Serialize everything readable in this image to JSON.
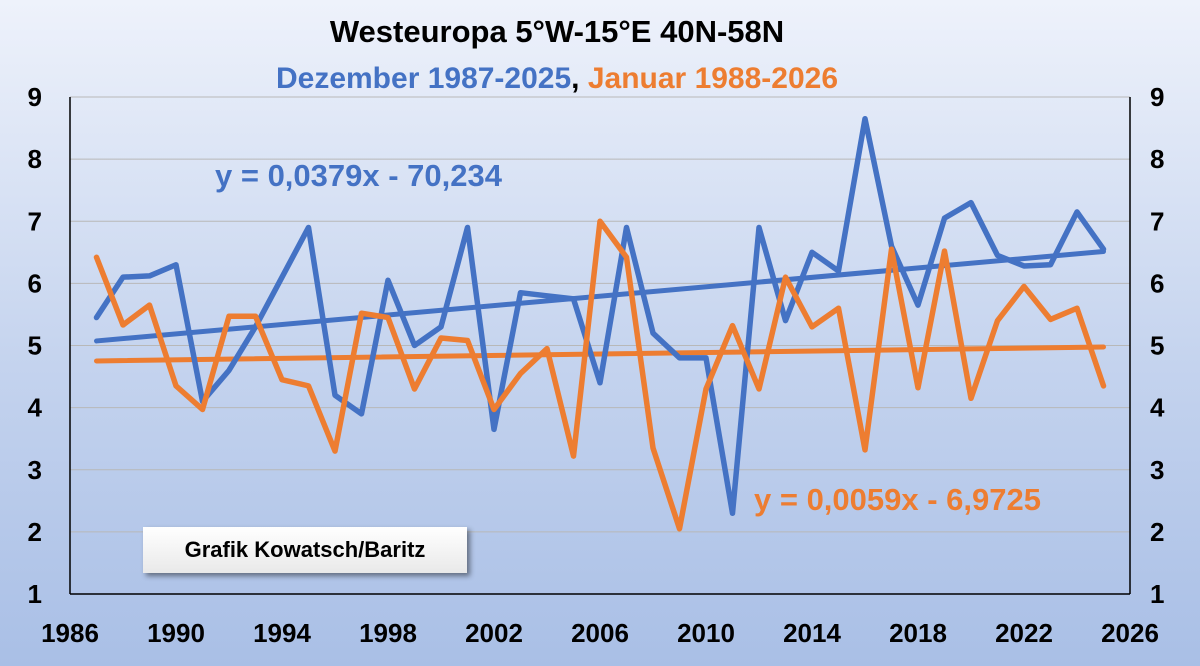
{
  "chart_data": {
    "type": "line",
    "title": "Westeuropa 5°W-15°E 40N-58N",
    "subtitle_parts": [
      {
        "text": "Dezember 1987-2025",
        "color": "#4472c4"
      },
      {
        "text": ",",
        "color": "#000000"
      },
      {
        "text": " Januar 1988-2026",
        "color": "#ed7d31"
      }
    ],
    "xlim": [
      1986,
      2026
    ],
    "ylim": [
      1,
      9
    ],
    "x_ticks": [
      "1986",
      "1990",
      "1994",
      "1998",
      "2002",
      "2006",
      "2010",
      "2014",
      "2018",
      "2022",
      "2026"
    ],
    "y_ticks": [
      "1",
      "2",
      "3",
      "4",
      "5",
      "6",
      "7",
      "8",
      "9"
    ],
    "grid": "horizontal",
    "series": [
      {
        "color": "#4472c4",
        "x": [
          1987,
          1988,
          1989,
          1990,
          1991,
          1992,
          1993,
          1994,
          1995,
          1996,
          1997,
          1998,
          1999,
          2000,
          2001,
          2002,
          2003,
          2004,
          2005,
          2006,
          2007,
          2008,
          2009,
          2010,
          2011,
          2012,
          2013,
          2014,
          2015,
          2016,
          2017,
          2018,
          2019,
          2020,
          2021,
          2022,
          2023,
          2024,
          2025
        ],
        "values": [
          5.45,
          6.1,
          6.12,
          6.3,
          4.1,
          4.6,
          5.3,
          6.1,
          6.9,
          4.2,
          3.9,
          6.05,
          5.0,
          5.3,
          6.9,
          3.65,
          5.85,
          5.8,
          5.75,
          4.4,
          6.9,
          5.2,
          4.8,
          4.8,
          2.3,
          6.9,
          5.4,
          6.5,
          6.2,
          8.65,
          6.6,
          5.65,
          7.05,
          7.3,
          6.45,
          6.28,
          6.3,
          7.15,
          6.55
        ],
        "trend": {
          "slope": 0.0379,
          "intercept": -70.234,
          "label": "y = 0,0379x - 70,234"
        }
      },
      {
        "color": "#ed7d31",
        "x": [
          1987,
          1988,
          1989,
          1990,
          1991,
          1992,
          1993,
          1994,
          1995,
          1996,
          1997,
          1998,
          1999,
          2000,
          2001,
          2002,
          2003,
          2004,
          2005,
          2006,
          2007,
          2008,
          2009,
          2010,
          2011,
          2012,
          2013,
          2014,
          2015,
          2016,
          2017,
          2018,
          2019,
          2020,
          2021,
          2022,
          2023,
          2024,
          2025
        ],
        "values": [
          6.42,
          5.33,
          5.65,
          4.35,
          3.97,
          5.47,
          5.47,
          4.45,
          4.35,
          3.3,
          5.52,
          5.45,
          4.3,
          5.12,
          5.08,
          3.97,
          4.55,
          4.95,
          3.22,
          7.0,
          6.42,
          3.35,
          2.05,
          4.3,
          5.32,
          4.3,
          6.1,
          5.3,
          5.6,
          3.32,
          6.55,
          4.32,
          6.52,
          4.15,
          5.4,
          5.95,
          5.42,
          5.6,
          4.35
        ],
        "trend": {
          "slope": 0.0059,
          "intercept": -6.9725,
          "label": "y = 0,0059x - 6,9725"
        }
      }
    ],
    "credit": "Grafik Kowatsch/Baritz"
  }
}
